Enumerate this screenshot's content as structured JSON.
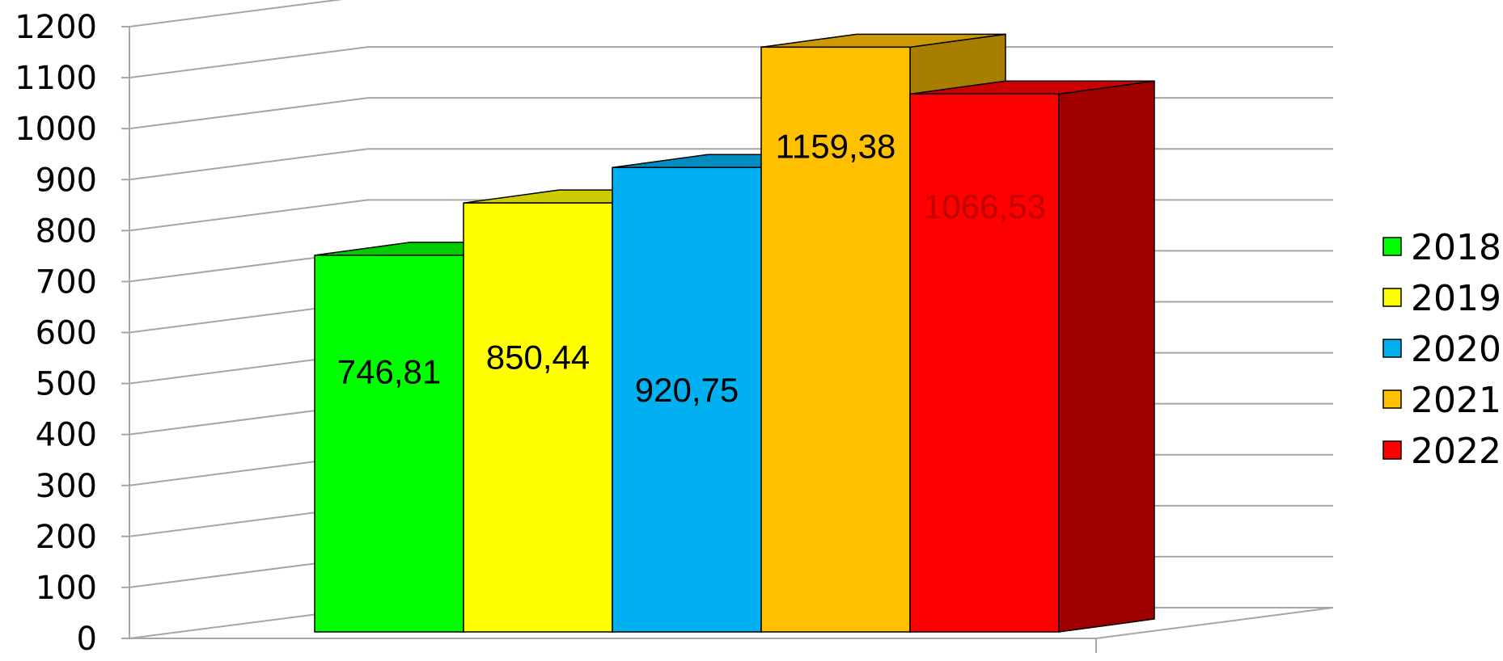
{
  "chart_data": {
    "type": "bar",
    "style": "3d-clustered-column",
    "title": "",
    "xlabel": "",
    "ylabel": "",
    "ylim": [
      0,
      1200
    ],
    "y_ticks": [
      "0",
      "100",
      "200",
      "300",
      "400",
      "500",
      "600",
      "700",
      "800",
      "900",
      "1000",
      "1100",
      "1200"
    ],
    "grid": true,
    "legend_position": "right",
    "series": [
      {
        "name": "2018",
        "value": 746.81,
        "label": "746,81",
        "color": "#00FF00",
        "side_color": "#00B000",
        "top_color": "#00CC00"
      },
      {
        "name": "2019",
        "value": 850.44,
        "label": "850,44",
        "color": "#FFFF00",
        "side_color": "#B3B300",
        "top_color": "#CCCC00"
      },
      {
        "name": "2020",
        "value": 920.75,
        "label": "920,75",
        "color": "#00B0F0",
        "side_color": "#0078A8",
        "top_color": "#008CC0"
      },
      {
        "name": "2021",
        "value": 1159.38,
        "label": "1159,38",
        "color": "#FFC000",
        "side_color": "#A87E00",
        "top_color": "#CC9A00"
      },
      {
        "name": "2022",
        "value": 1066.53,
        "label": "1066,53",
        "color": "#FF0000",
        "side_color": "#A00000",
        "top_color": "#CC0000",
        "label_color": "#C00000"
      }
    ]
  }
}
